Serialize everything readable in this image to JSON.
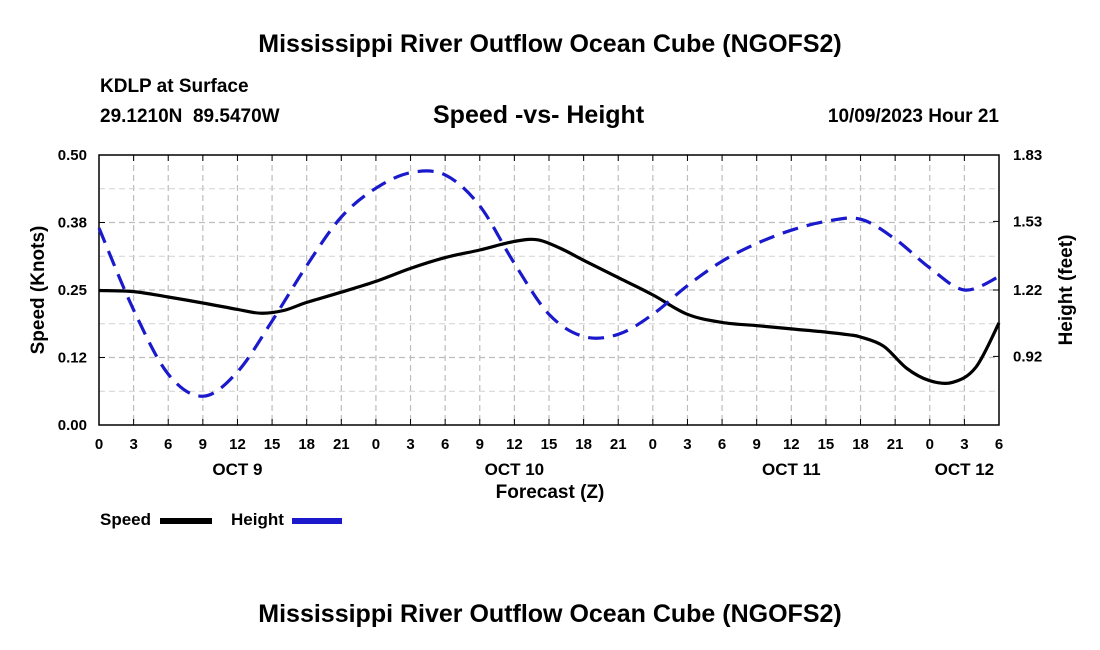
{
  "page": {
    "title": "Mississippi River Outflow Ocean Cube (NGOFS2)",
    "footer_title": "Mississippi River Outflow Ocean Cube (NGOFS2)",
    "station": "KDLP at Surface",
    "coords": "29.1210N  89.5470W",
    "subtitle": "Speed -vs- Height",
    "datetime": "10/09/2023 Hour 21"
  },
  "chart_data": {
    "type": "line",
    "xlabel": "Forecast (Z)",
    "ylabel_left": "Speed (Knots)",
    "ylabel_right": "Height (feet)",
    "x_range_hours": [
      0,
      78
    ],
    "x_tick_labels": [
      "0",
      "3",
      "6",
      "9",
      "12",
      "15",
      "18",
      "21",
      "0",
      "3",
      "6",
      "9",
      "12",
      "15",
      "18",
      "21",
      "0",
      "3",
      "6",
      "9",
      "12",
      "15",
      "18",
      "21",
      "0",
      "3",
      "6"
    ],
    "day_labels": [
      {
        "label": "OCT 9",
        "hour": 12
      },
      {
        "label": "OCT 10",
        "hour": 36
      },
      {
        "label": "OCT 11",
        "hour": 60
      },
      {
        "label": "OCT 12",
        "hour": 75
      }
    ],
    "ylim_left": [
      0,
      0.5
    ],
    "yticks_left": [
      "0.00",
      "0.12",
      "0.25",
      "0.38",
      "0.50"
    ],
    "ylim_right": [
      0.61,
      1.83
    ],
    "yticks_right": [
      "0.92",
      "1.22",
      "1.53",
      "1.83"
    ],
    "grid": true,
    "series": [
      {
        "name": "Speed",
        "axis": "left",
        "color": "#000000",
        "dash": "solid",
        "x": [
          0,
          3,
          6,
          9,
          12,
          14,
          16,
          18,
          21,
          24,
          27,
          30,
          33,
          36,
          38,
          40,
          42,
          45,
          48,
          51,
          54,
          57,
          60,
          63,
          65,
          66,
          68,
          70,
          72,
          74,
          76,
          78
        ],
        "y": [
          0.249,
          0.247,
          0.237,
          0.226,
          0.214,
          0.207,
          0.212,
          0.227,
          0.246,
          0.266,
          0.29,
          0.31,
          0.324,
          0.34,
          0.343,
          0.327,
          0.305,
          0.273,
          0.241,
          0.205,
          0.19,
          0.184,
          0.178,
          0.172,
          0.167,
          0.163,
          0.146,
          0.105,
          0.082,
          0.079,
          0.107,
          0.189
        ]
      },
      {
        "name": "Height",
        "axis": "right",
        "color": "#1a1acc",
        "dash": "dashed",
        "x": [
          0,
          3,
          6,
          9,
          12,
          15,
          18,
          21,
          24,
          27,
          30,
          33,
          36,
          39,
          42,
          45,
          48,
          51,
          54,
          57,
          60,
          63,
          66,
          69,
          72,
          75,
          78
        ],
        "y": [
          1.5,
          1.13,
          0.84,
          0.74,
          0.85,
          1.08,
          1.33,
          1.55,
          1.68,
          1.75,
          1.74,
          1.6,
          1.34,
          1.11,
          1.01,
          1.02,
          1.11,
          1.24,
          1.35,
          1.43,
          1.49,
          1.53,
          1.54,
          1.45,
          1.32,
          1.22,
          1.28
        ]
      }
    ],
    "legend": {
      "placement": "bottom-left",
      "entries": [
        {
          "label": "Speed",
          "color": "#000000"
        },
        {
          "label": "Height",
          "color": "#1a1acc"
        }
      ]
    }
  }
}
